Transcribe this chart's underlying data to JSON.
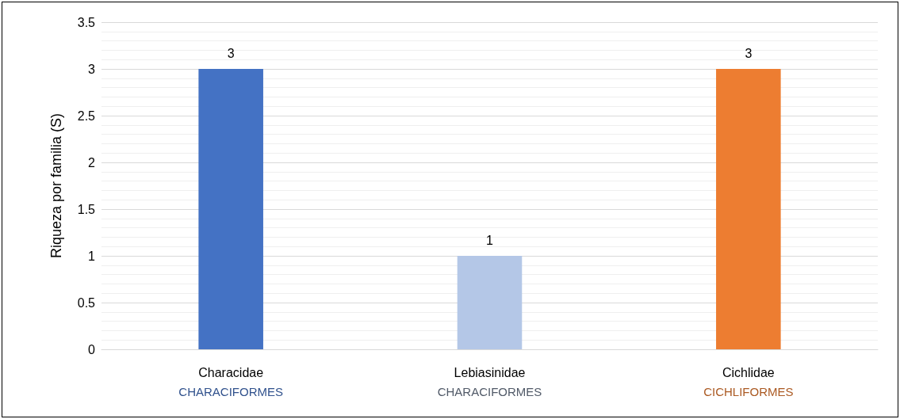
{
  "chart_data": {
    "type": "bar",
    "ylabel": "Riqueza por familia (S)",
    "categories": [
      "Characidae\nCHARACIFORMES",
      "Lebiasinidae\nCHARACIFORMES",
      "Cichlidae\nCICHLIFORMES"
    ],
    "values": [
      3,
      1,
      3
    ],
    "colors": [
      "#4472c4",
      "#b4c7e7",
      "#ed7d31"
    ],
    "ylim": [
      0,
      3.5
    ],
    "yticks": [
      0,
      0.5,
      1,
      1.5,
      2,
      2.5,
      3,
      3.5
    ],
    "grid": "y",
    "data_labels": true
  }
}
